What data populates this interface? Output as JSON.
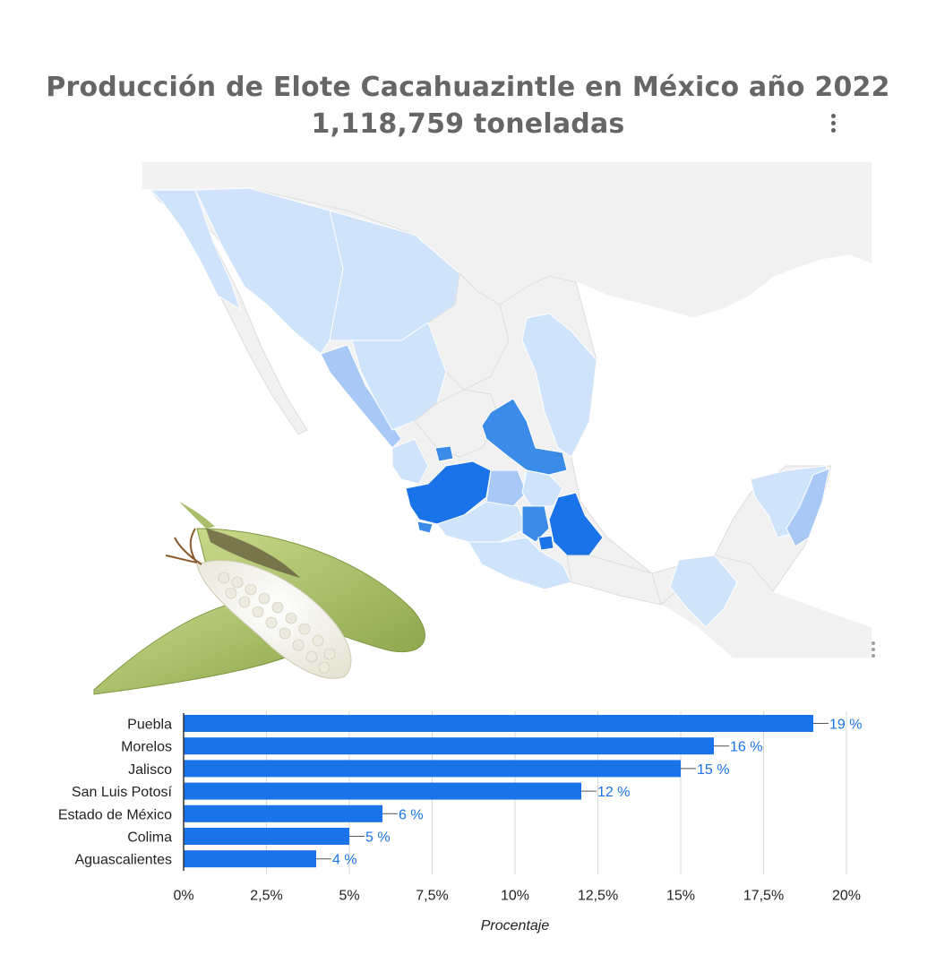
{
  "header": {
    "title": "Producción de Elote Cacahuazintle en México año 2022",
    "subtitle": "1,118,759 toneladas"
  },
  "map": {
    "color_scale": [
      "#f1f1f1",
      "#cfe3fa",
      "#a8c9f5",
      "#3b8be9",
      "#1a73e8"
    ],
    "highlight_color": "#1a73e8",
    "background_land_color": "#f1f1f1"
  },
  "illustration": {
    "icon": "corn-cob-icon"
  },
  "chart_data": {
    "type": "bar",
    "orientation": "horizontal",
    "categories": [
      "Puebla",
      "Morelos",
      "Jalisco",
      "San Luis Potosí",
      "Estado de México",
      "Colima",
      "Aguascalientes"
    ],
    "values": [
      19,
      16,
      15,
      12,
      6,
      5,
      4
    ],
    "data_labels": [
      "19 %",
      "16 %",
      "15 %",
      "12 %",
      "6 %",
      "5 %",
      "4 %"
    ],
    "xlabel": "Procentaje",
    "ylabel": "",
    "xlim": [
      0,
      20
    ],
    "xticks": [
      0,
      2.5,
      5,
      7.5,
      10,
      12.5,
      15,
      17.5,
      20
    ],
    "xtick_labels": [
      "0%",
      "2,5%",
      "5%",
      "7,5%",
      "10%",
      "12,5%",
      "15%",
      "17,5%",
      "20%"
    ],
    "grid": true,
    "bar_color": "#1a73e8",
    "label_color": "#1a73e8"
  }
}
